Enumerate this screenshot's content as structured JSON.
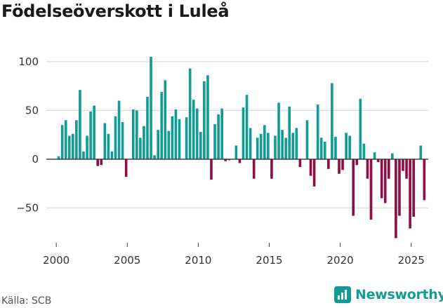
{
  "chart_data": {
    "type": "bar",
    "title": "Födelseöverskott i Luleå",
    "xlabel": "",
    "ylabel": "",
    "x_start": 2000.17,
    "x_step": 0.25,
    "x_ticks": [
      2000,
      2005,
      2010,
      2015,
      2020,
      2025
    ],
    "y_ticks": [
      100,
      50,
      0,
      -50
    ],
    "ylim": [
      -90,
      110
    ],
    "xlim": [
      1999.3,
      2026.2
    ],
    "positive_color": "#139b95",
    "negative_color": "#8e0e45",
    "values": [
      3,
      35,
      40,
      24,
      26,
      40,
      71,
      8,
      24,
      49,
      55,
      -7,
      -6,
      37,
      26,
      8,
      44,
      60,
      38,
      -18,
      0,
      51,
      50,
      22,
      34,
      64,
      105,
      4,
      30,
      69,
      81,
      29,
      44,
      51,
      41,
      0,
      43,
      93,
      61,
      52,
      28,
      80,
      86,
      -21,
      36,
      46,
      52,
      -2,
      -1,
      0,
      14,
      -4,
      53,
      66,
      32,
      -20,
      22,
      26,
      35,
      27,
      -20,
      24,
      58,
      30,
      22,
      54,
      27,
      32,
      -8,
      0,
      40,
      -17,
      -28,
      56,
      22,
      18,
      -10,
      78,
      23,
      -15,
      -11,
      27,
      24,
      -58,
      -6,
      62,
      16,
      -20,
      -62,
      7,
      -3,
      -40,
      -45,
      -20,
      6,
      -81,
      -58,
      -12,
      -20,
      -71,
      -59,
      0,
      14,
      -42
    ]
  },
  "source": "Källa: SCB",
  "brand": {
    "name": "Newsworthy",
    "icon": "newsworthy-logo-icon"
  }
}
